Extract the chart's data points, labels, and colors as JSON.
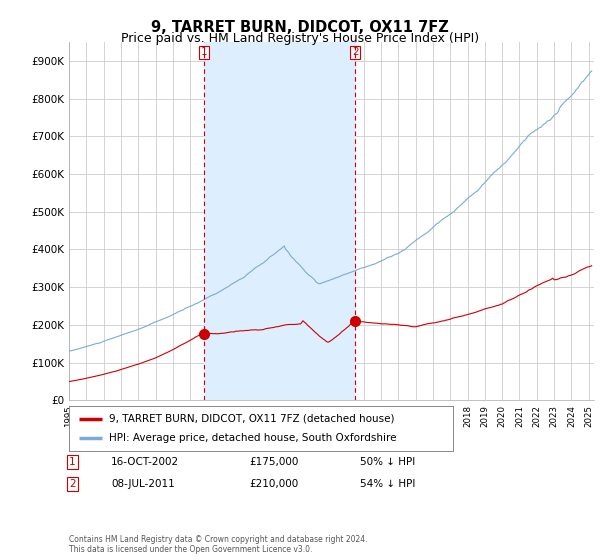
{
  "title": "9, TARRET BURN, DIDCOT, OX11 7FZ",
  "subtitle": "Price paid vs. HM Land Registry's House Price Index (HPI)",
  "ylim": [
    0,
    950000
  ],
  "yticks": [
    0,
    100000,
    200000,
    300000,
    400000,
    500000,
    600000,
    700000,
    800000,
    900000
  ],
  "ytick_labels": [
    "£0",
    "£100K",
    "£200K",
    "£300K",
    "£400K",
    "£500K",
    "£600K",
    "£700K",
    "£800K",
    "£900K"
  ],
  "plot_bg_color": "#ffffff",
  "grid_color": "#cccccc",
  "hpi_color": "#7aaadd",
  "price_color": "#cc0000",
  "shade_color": "#ddeeff",
  "transaction1_x": 2002.79,
  "transaction1_y": 175000,
  "transaction2_x": 2011.52,
  "transaction2_y": 210000,
  "xlim_left": 1995.0,
  "xlim_right": 2025.3,
  "legend_entries": [
    "9, TARRET BURN, DIDCOT, OX11 7FZ (detached house)",
    "HPI: Average price, detached house, South Oxfordshire"
  ],
  "footer": "Contains HM Land Registry data © Crown copyright and database right 2024.\nThis data is licensed under the Open Government Licence v3.0.",
  "title_fontsize": 10.5,
  "subtitle_fontsize": 9
}
